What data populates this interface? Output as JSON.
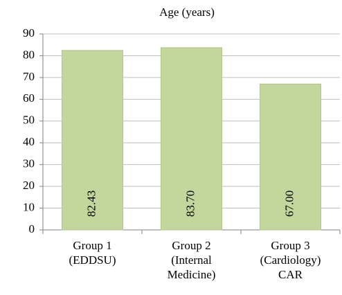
{
  "chart_data": {
    "type": "bar",
    "title": "Age (years)",
    "categories": [
      "Group 1\n(EDDSU)",
      "Group 2\n(Internal\nMedicine)",
      "Group 3\n(Cardiology)\nCAR"
    ],
    "values": [
      82.43,
      83.7,
      67.0
    ],
    "value_labels": [
      "82.43",
      "83.70",
      "67.00"
    ],
    "color": "#c3d69b",
    "ylim": [
      0,
      90
    ],
    "yticks": [
      0,
      10,
      20,
      30,
      40,
      50,
      60,
      70,
      80,
      90
    ],
    "grid": true
  }
}
